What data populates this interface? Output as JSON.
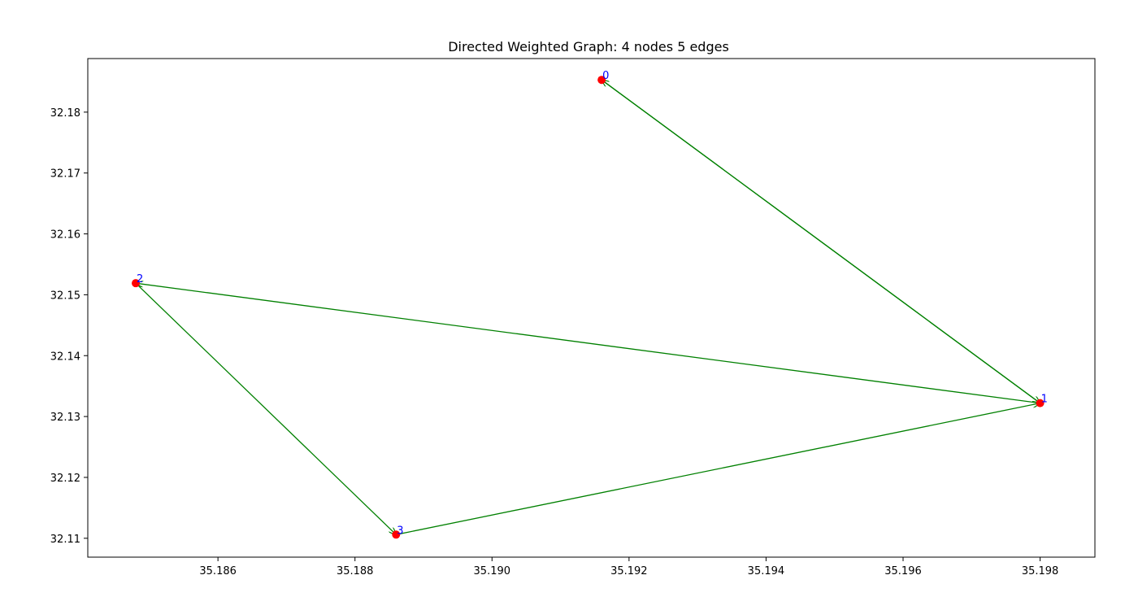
{
  "chart_data": {
    "type": "scatter",
    "title": "Directed Weighted Graph: 4 nodes 5 edges",
    "xlabel": "",
    "ylabel": "",
    "xlim": [
      35.1841,
      35.1988
    ],
    "ylim": [
      32.1069,
      32.1888
    ],
    "x_ticks": [
      "35.186",
      "35.188",
      "35.190",
      "35.192",
      "35.194",
      "35.196",
      "35.198"
    ],
    "y_ticks": [
      "32.11",
      "32.12",
      "32.13",
      "32.14",
      "32.15",
      "32.16",
      "32.17",
      "32.18"
    ],
    "grid": false,
    "nodes": [
      {
        "id": "0",
        "x": 35.1916,
        "y": 32.1853
      },
      {
        "id": "1",
        "x": 35.198,
        "y": 32.1322
      },
      {
        "id": "2",
        "x": 35.1848,
        "y": 32.1519
      },
      {
        "id": "3",
        "x": 35.1886,
        "y": 32.1106
      }
    ],
    "edges": [
      {
        "from": "1",
        "to": "0"
      },
      {
        "from": "0",
        "to": "1"
      },
      {
        "from": "1",
        "to": "2"
      },
      {
        "from": "2",
        "to": "3"
      },
      {
        "from": "3",
        "to": "1"
      }
    ],
    "colors": {
      "node": "#ff0000",
      "edge": "#008000",
      "label": "#0000ff"
    }
  }
}
